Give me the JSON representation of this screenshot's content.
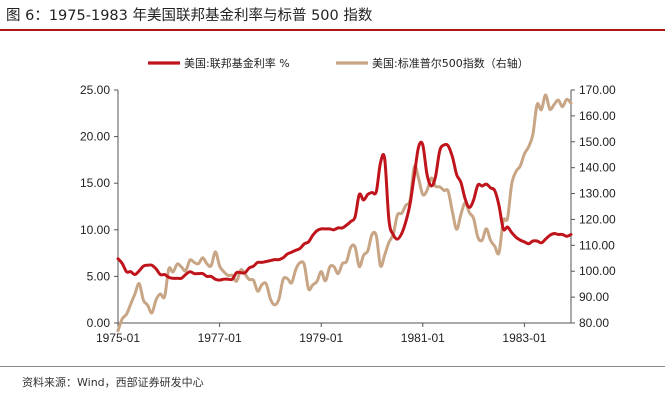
{
  "figure": {
    "title": "图 6：1975-1983 年美国联邦基金利率与标普 500 指数",
    "source": "资料来源：Wind，西部证券研发中心"
  },
  "colors": {
    "fed_funds": "#c0141c",
    "sp500": "#c7a585",
    "title_rule": "#b01818",
    "axis": "#555555"
  },
  "chart_data": {
    "type": "line",
    "title": "",
    "x_ticks": [
      "1975-01",
      "1977-01",
      "1979-01",
      "1981-01",
      "1983-01"
    ],
    "x_range": [
      "1975-01",
      "1983-12"
    ],
    "y_left": {
      "ticks": [
        "0.00",
        "5.00",
        "10.00",
        "15.00",
        "20.00",
        "25.00"
      ],
      "ylim": [
        0,
        25
      ]
    },
    "y_right": {
      "ticks": [
        "80.00",
        "90.00",
        "100.00",
        "110.00",
        "120.00",
        "130.00",
        "140.00",
        "150.00",
        "160.00",
        "170.00"
      ],
      "ylim": [
        80,
        170
      ]
    },
    "legend_position": "top",
    "series": [
      {
        "name": "美国:联邦基金利率 %",
        "axis": "left",
        "x": [
          "1975-01",
          "1975-02",
          "1975-03",
          "1975-04",
          "1975-05",
          "1975-06",
          "1975-07",
          "1975-08",
          "1975-09",
          "1975-10",
          "1975-11",
          "1975-12",
          "1976-01",
          "1976-02",
          "1976-03",
          "1976-04",
          "1976-05",
          "1976-06",
          "1976-07",
          "1976-08",
          "1976-09",
          "1976-10",
          "1976-11",
          "1976-12",
          "1977-01",
          "1977-02",
          "1977-03",
          "1977-04",
          "1977-05",
          "1977-06",
          "1977-07",
          "1977-08",
          "1977-09",
          "1977-10",
          "1977-11",
          "1977-12",
          "1978-01",
          "1978-02",
          "1978-03",
          "1978-04",
          "1978-05",
          "1978-06",
          "1978-07",
          "1978-08",
          "1978-09",
          "1978-10",
          "1978-11",
          "1978-12",
          "1979-01",
          "1979-02",
          "1979-03",
          "1979-04",
          "1979-05",
          "1979-06",
          "1979-07",
          "1979-08",
          "1979-09",
          "1979-10",
          "1979-11",
          "1979-12",
          "1980-01",
          "1980-02",
          "1980-03",
          "1980-04",
          "1980-05",
          "1980-06",
          "1980-07",
          "1980-08",
          "1980-09",
          "1980-10",
          "1980-11",
          "1980-12",
          "1981-01",
          "1981-02",
          "1981-03",
          "1981-04",
          "1981-05",
          "1981-06",
          "1981-07",
          "1981-08",
          "1981-09",
          "1981-10",
          "1981-11",
          "1981-12",
          "1982-01",
          "1982-02",
          "1982-03",
          "1982-04",
          "1982-05",
          "1982-06",
          "1982-07",
          "1982-08",
          "1982-09",
          "1982-10",
          "1982-11",
          "1982-12",
          "1983-01",
          "1983-02",
          "1983-03",
          "1983-04",
          "1983-05",
          "1983-06",
          "1983-07",
          "1983-08",
          "1983-09",
          "1983-10",
          "1983-11",
          "1983-12"
        ],
        "values": [
          6.9,
          6.4,
          5.5,
          5.5,
          5.2,
          5.6,
          6.1,
          6.2,
          6.2,
          5.8,
          5.2,
          5.2,
          4.9,
          4.8,
          4.8,
          4.8,
          5.2,
          5.5,
          5.3,
          5.3,
          5.3,
          5.0,
          5.0,
          4.7,
          4.6,
          4.7,
          4.7,
          4.7,
          5.4,
          5.4,
          5.4,
          5.9,
          6.1,
          6.5,
          6.5,
          6.6,
          6.7,
          6.8,
          6.8,
          7.0,
          7.4,
          7.6,
          7.8,
          8.0,
          8.5,
          8.7,
          9.4,
          9.9,
          10.1,
          10.1,
          10.1,
          10.0,
          10.2,
          10.2,
          10.5,
          10.9,
          11.4,
          13.8,
          13.2,
          13.8,
          14.0,
          14.1,
          17.2,
          17.6,
          11.0,
          9.5,
          9.0,
          9.6,
          10.9,
          12.8,
          15.9,
          18.9,
          19.1,
          15.9,
          14.7,
          15.7,
          18.5,
          19.1,
          19.0,
          17.8,
          15.9,
          15.1,
          13.3,
          12.4,
          13.2,
          14.8,
          14.7,
          14.9,
          14.5,
          14.2,
          12.6,
          10.1,
          10.3,
          9.7,
          9.2,
          8.9,
          8.7,
          8.5,
          8.8,
          8.8,
          8.6,
          9.0,
          9.4,
          9.6,
          9.5,
          9.5,
          9.3,
          9.5
        ]
      },
      {
        "name": "美国:标准普尔500指数（右轴）",
        "axis": "right",
        "x": [
          "1975-01",
          "1975-02",
          "1975-03",
          "1975-04",
          "1975-05",
          "1975-06",
          "1975-07",
          "1975-08",
          "1975-09",
          "1975-10",
          "1975-11",
          "1975-12",
          "1976-01",
          "1976-02",
          "1976-03",
          "1976-04",
          "1976-05",
          "1976-06",
          "1976-07",
          "1976-08",
          "1976-09",
          "1976-10",
          "1976-11",
          "1976-12",
          "1977-01",
          "1977-02",
          "1977-03",
          "1977-04",
          "1977-05",
          "1977-06",
          "1977-07",
          "1977-08",
          "1977-09",
          "1977-10",
          "1977-11",
          "1977-12",
          "1978-01",
          "1978-02",
          "1978-03",
          "1978-04",
          "1978-05",
          "1978-06",
          "1978-07",
          "1978-08",
          "1978-09",
          "1978-10",
          "1978-11",
          "1978-12",
          "1979-01",
          "1979-02",
          "1979-03",
          "1979-04",
          "1979-05",
          "1979-06",
          "1979-07",
          "1979-08",
          "1979-09",
          "1979-10",
          "1979-11",
          "1979-12",
          "1980-01",
          "1980-02",
          "1980-03",
          "1980-04",
          "1980-05",
          "1980-06",
          "1980-07",
          "1980-08",
          "1980-09",
          "1980-10",
          "1980-11",
          "1980-12",
          "1981-01",
          "1981-02",
          "1981-03",
          "1981-04",
          "1981-05",
          "1981-06",
          "1981-07",
          "1981-08",
          "1981-09",
          "1981-10",
          "1981-11",
          "1981-12",
          "1982-01",
          "1982-02",
          "1982-03",
          "1982-04",
          "1982-05",
          "1982-06",
          "1982-07",
          "1982-08",
          "1982-09",
          "1982-10",
          "1982-11",
          "1982-12",
          "1983-01",
          "1983-02",
          "1983-03",
          "1983-04",
          "1983-05",
          "1983-06",
          "1983-07",
          "1983-08",
          "1983-09",
          "1983-10",
          "1983-11",
          "1983-12"
        ],
        "values": [
          77.0,
          81.6,
          83.4,
          87.3,
          91.2,
          95.2,
          88.8,
          86.9,
          83.9,
          89.0,
          91.2,
          90.2,
          100.9,
          99.7,
          102.8,
          101.6,
          100.2,
          104.3,
          103.4,
          102.9,
          105.2,
          102.9,
          102.1,
          107.5,
          102.0,
          99.8,
          98.4,
          98.4,
          96.1,
          100.5,
          98.9,
          96.8,
          96.5,
          92.3,
          94.8,
          95.1,
          89.3,
          87.0,
          89.2,
          96.8,
          97.2,
          95.5,
          100.7,
          103.3,
          102.5,
          93.2,
          94.7,
          96.1,
          99.9,
          96.3,
          101.6,
          101.8,
          99.1,
          102.9,
          103.8,
          109.3,
          109.3,
          101.8,
          106.2,
          107.9,
          114.2,
          113.7,
          102.1,
          106.3,
          111.2,
          114.2,
          121.7,
          122.4,
          125.5,
          127.5,
          140.5,
          135.8,
          129.6,
          131.3,
          136.0,
          132.8,
          132.6,
          131.2,
          130.9,
          122.8,
          116.2,
          121.9,
          126.4,
          122.6,
          120.4,
          113.1,
          112.0,
          116.4,
          111.9,
          109.6,
          107.1,
          119.5,
          120.4,
          133.7,
          138.5,
          140.6,
          145.3,
          148.1,
          152.9,
          164.4,
          162.4,
          168.1,
          162.6,
          164.4,
          166.1,
          163.6,
          166.4,
          164.9
        ]
      }
    ]
  }
}
